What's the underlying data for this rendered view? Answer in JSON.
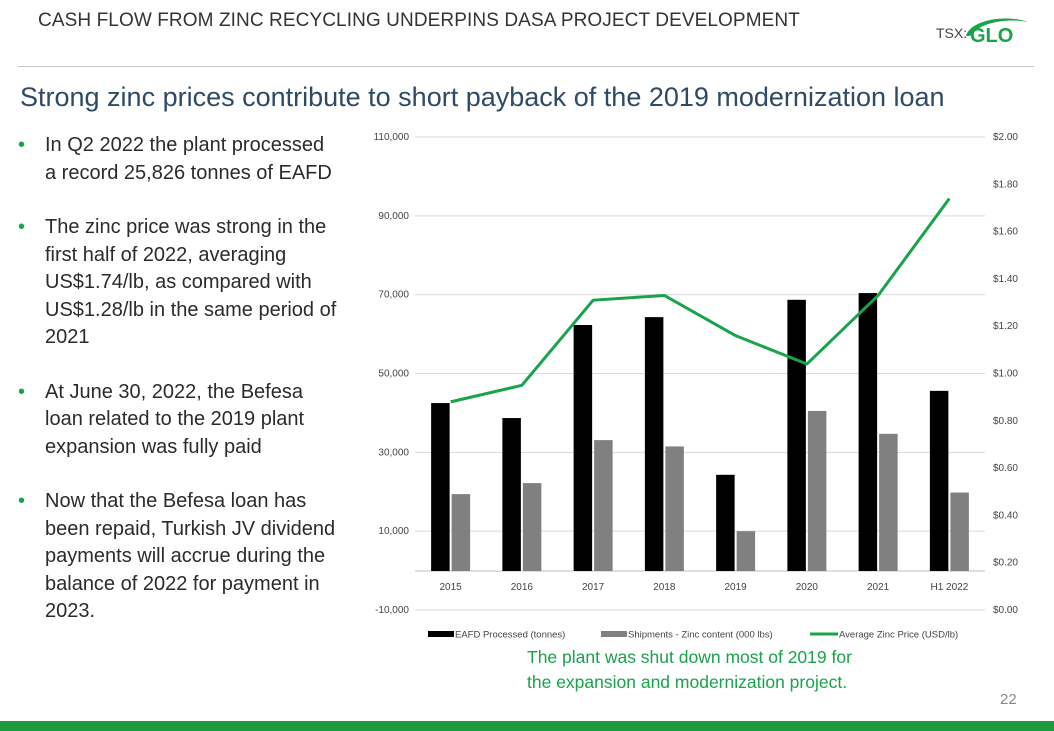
{
  "header": {
    "title": "CASH FLOW FROM ZINC RECYCLING UNDERPINS DASA PROJECT DEVELOPMENT"
  },
  "logo": {
    "prefix": "TSX:",
    "ticker": "GLO"
  },
  "slide": {
    "subtitle": "Strong zinc prices contribute to short payback of the 2019 modernization loan"
  },
  "bullets": [
    "In Q2 2022 the plant processed a record 25,826 tonnes of EAFD",
    "The zinc price was strong in the first half of 2022, averaging US$1.74/lb, as compared with US$1.28/lb in the same period of 2021",
    "At June 30, 2022, the Befesa loan related to the 2019 plant expansion was fully paid",
    "Now that the Befesa loan has been repaid, Turkish JV dividend payments will accrue during the balance of 2022 for payment in 2023."
  ],
  "note": {
    "line1": "The plant was shut down most of 2019 for",
    "line2": "the expansion and modernization project."
  },
  "page_number": "22",
  "colors": {
    "green": "#19a34a",
    "eafd": "#000000",
    "shipments": "#808080",
    "subtitle": "#2e4a66"
  },
  "chart_data": {
    "type": "bar",
    "categories": [
      "2015",
      "2016",
      "2017",
      "2018",
      "2019",
      "2020",
      "2021",
      "H1 2022"
    ],
    "series": [
      {
        "name": "EAFD Processed (tonnes)",
        "type": "bar",
        "axis": "left",
        "values": [
          42500,
          38700,
          62300,
          64300,
          24300,
          68700,
          70400,
          45600
        ]
      },
      {
        "name": "Shipments - Zinc content (000 lbs)",
        "type": "bar",
        "axis": "left",
        "values": [
          19400,
          22200,
          33100,
          31500,
          10000,
          40500,
          34700,
          19800
        ]
      },
      {
        "name": "Average Zinc Price (USD/lb)",
        "type": "line",
        "axis": "right",
        "values": [
          0.88,
          0.95,
          1.31,
          1.33,
          1.16,
          1.04,
          1.33,
          1.74
        ]
      }
    ],
    "left_axis": {
      "ticks": [
        "110,000",
        "90,000",
        "70,000",
        "50,000",
        "30,000",
        "10,000",
        "-10,000"
      ],
      "tick_values": [
        110000,
        90000,
        70000,
        50000,
        30000,
        10000,
        -10000
      ],
      "min": -10000,
      "max": 110000
    },
    "right_axis": {
      "ticks": [
        "$2.00",
        "$1.80",
        "$1.60",
        "$1.40",
        "$1.20",
        "$1.00",
        "$0.80",
        "$0.60",
        "$0.40",
        "$0.20",
        "$0.00"
      ],
      "tick_values": [
        2.0,
        1.8,
        1.6,
        1.4,
        1.2,
        1.0,
        0.8,
        0.6,
        0.4,
        0.2,
        0.0
      ],
      "min": 0.0,
      "max": 2.0
    },
    "grid": true,
    "legend": "bottom"
  }
}
